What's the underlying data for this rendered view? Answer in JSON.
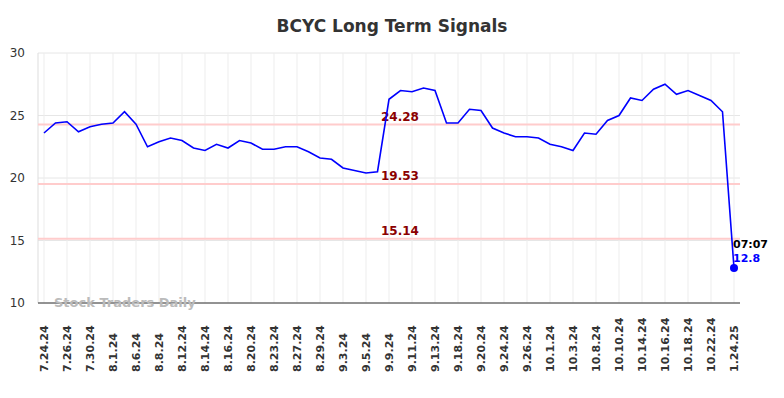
{
  "chart_data": {
    "type": "line",
    "title": "BCYC Long Term Signals",
    "categories": [
      "7.24.24",
      null,
      "7.26.24",
      null,
      "7.30.24",
      null,
      "8.1.24",
      null,
      "8.6.24",
      null,
      "8.8.24",
      null,
      "8.12.24",
      null,
      "8.14.24",
      null,
      "8.16.24",
      null,
      "8.20.24",
      null,
      "8.23.24",
      null,
      "8.27.24",
      null,
      "8.29.24",
      null,
      "9.3.24",
      null,
      "9.5.24",
      null,
      "9.9.24",
      null,
      "9.11.24",
      null,
      "9.13.24",
      null,
      "9.18.24",
      null,
      "9.20.24",
      null,
      "9.24.24",
      null,
      "9.26.24",
      null,
      "10.1.24",
      null,
      "10.3.24",
      null,
      "10.8.24",
      null,
      "10.10.24",
      null,
      "10.14.24",
      null,
      "10.16.24",
      null,
      "10.18.24",
      null,
      "10.22.24",
      null,
      "1.24.25"
    ],
    "values": [
      23.6,
      24.4,
      24.5,
      23.7,
      24.1,
      24.3,
      24.4,
      25.3,
      24.3,
      22.5,
      22.9,
      23.2,
      23.0,
      22.4,
      22.2,
      22.7,
      22.4,
      23.0,
      22.8,
      22.3,
      22.3,
      22.5,
      22.5,
      22.1,
      21.6,
      21.5,
      20.8,
      20.6,
      20.4,
      20.5,
      26.3,
      27.0,
      26.9,
      27.2,
      27.0,
      24.4,
      24.4,
      25.5,
      25.4,
      24.0,
      23.6,
      23.3,
      23.3,
      23.2,
      22.7,
      22.5,
      22.2,
      23.6,
      23.5,
      24.6,
      25.0,
      26.4,
      26.2,
      27.1,
      27.5,
      26.7,
      27.0,
      26.6,
      26.2,
      25.3,
      12.8
    ],
    "color": "#0000ff",
    "ylim": [
      10,
      30
    ],
    "yticks": [
      10,
      15,
      20,
      25,
      30
    ],
    "grid": true,
    "reference_lines": [
      24.28,
      19.53,
      15.14
    ],
    "annotations": [
      {
        "text": "07:07"
      },
      {
        "text": "Stock Traders Daily"
      }
    ]
  }
}
